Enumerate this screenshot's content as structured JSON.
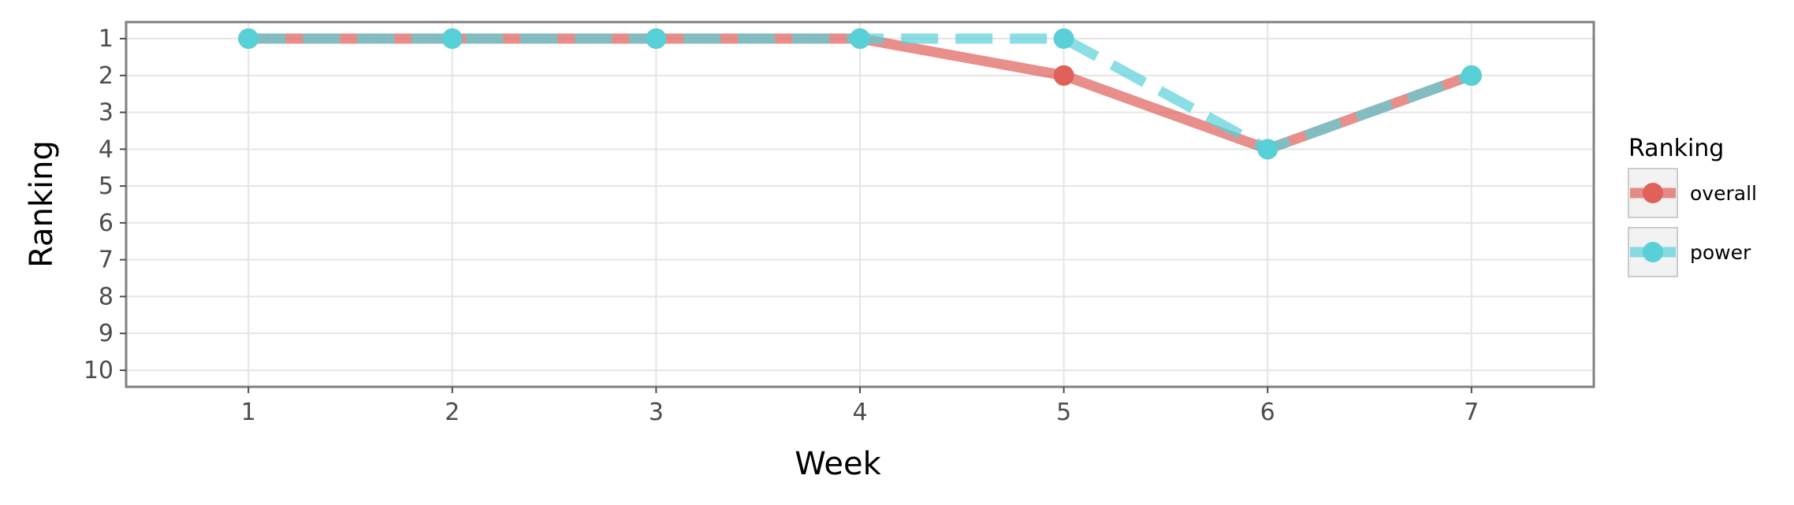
{
  "chart_data": {
    "type": "line",
    "xlabel": "Week",
    "ylabel": "Ranking",
    "x": [
      1,
      2,
      3,
      4,
      5,
      6,
      7
    ],
    "x_ticks": [
      "1",
      "2",
      "3",
      "4",
      "5",
      "6",
      "7"
    ],
    "y_ticks": [
      "1",
      "2",
      "3",
      "4",
      "5",
      "6",
      "7",
      "8",
      "9",
      "10"
    ],
    "xlim": [
      0.4,
      7.6
    ],
    "ylim": [
      10.45,
      0.55
    ],
    "y_reversed": true,
    "grid": true,
    "legend": {
      "title": "Ranking",
      "position": "right"
    },
    "series": [
      {
        "name": "overall",
        "values": [
          1,
          1,
          1,
          1,
          2,
          4,
          2
        ],
        "color": "#e0605a",
        "line_style": "solid"
      },
      {
        "name": "power",
        "values": [
          1,
          1,
          1,
          1,
          1,
          4,
          2
        ],
        "color": "#58d0d8",
        "line_style": "dashed"
      }
    ]
  }
}
